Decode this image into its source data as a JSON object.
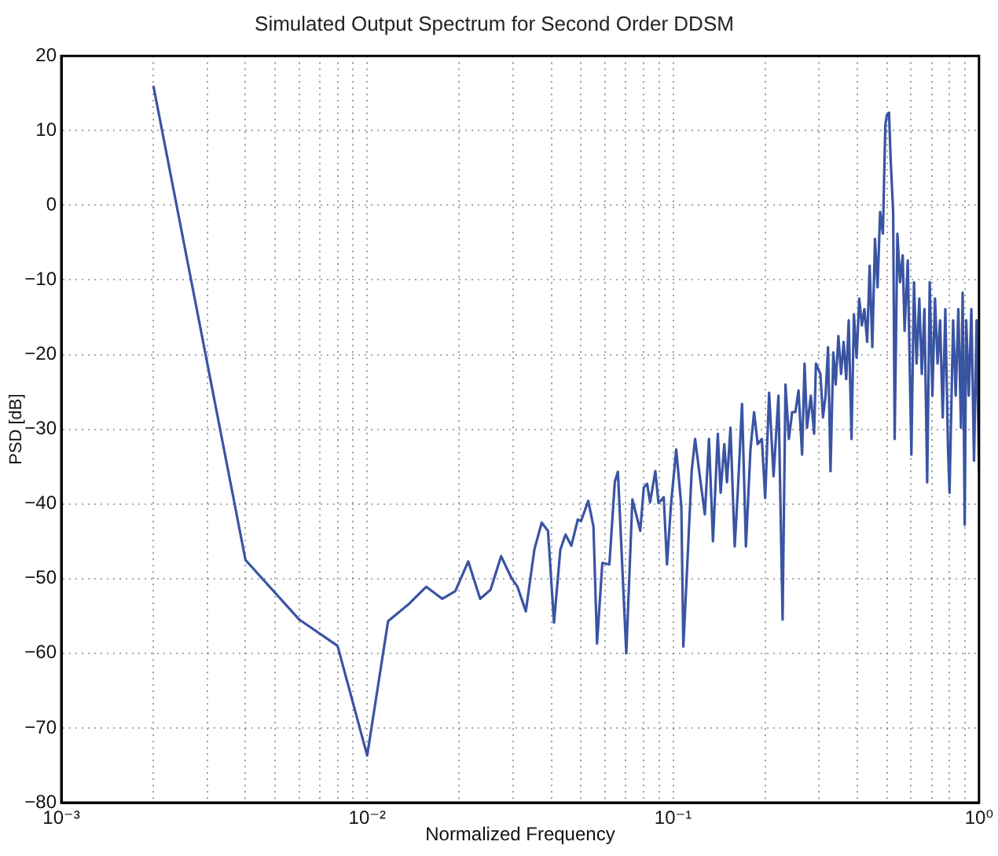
{
  "chart_data": {
    "type": "line",
    "title": "Simulated Output Spectrum for Second Order DDSM",
    "xlabel": "Normalized Frequency",
    "ylabel": "PSD [dB]",
    "log": "x",
    "grid": true,
    "legend": false,
    "marker": "none",
    "line_style": "solid",
    "xlim": [
      0.001,
      1
    ],
    "ylim": [
      -80,
      20
    ],
    "xticks": [
      {
        "value": 0.001,
        "label": "10⁻³"
      },
      {
        "value": 0.002,
        "label": null
      },
      {
        "value": 0.003,
        "label": null
      },
      {
        "value": 0.004,
        "label": null
      },
      {
        "value": 0.005,
        "label": null
      },
      {
        "value": 0.006,
        "label": null
      },
      {
        "value": 0.007,
        "label": null
      },
      {
        "value": 0.008,
        "label": null
      },
      {
        "value": 0.009,
        "label": null
      },
      {
        "value": 0.01,
        "label": "10⁻²"
      },
      {
        "value": 0.02,
        "label": null
      },
      {
        "value": 0.03,
        "label": null
      },
      {
        "value": 0.04,
        "label": null
      },
      {
        "value": 0.05,
        "label": null
      },
      {
        "value": 0.06,
        "label": null
      },
      {
        "value": 0.07,
        "label": null
      },
      {
        "value": 0.08,
        "label": null
      },
      {
        "value": 0.09,
        "label": null
      },
      {
        "value": 0.1,
        "label": "10⁻¹"
      },
      {
        "value": 0.2,
        "label": null
      },
      {
        "value": 0.3,
        "label": null
      },
      {
        "value": 0.4,
        "label": null
      },
      {
        "value": 0.5,
        "label": null
      },
      {
        "value": 0.6,
        "label": null
      },
      {
        "value": 0.7,
        "label": null
      },
      {
        "value": 0.8,
        "label": null
      },
      {
        "value": 0.9,
        "label": null
      },
      {
        "value": 1,
        "label": "10⁰"
      }
    ],
    "yticks": [
      -80,
      -70,
      -60,
      -50,
      -40,
      -30,
      -20,
      -10,
      0,
      10,
      20
    ],
    "series": [
      {
        "color": "#3a54a4",
        "x": [
          0.002,
          0.004,
          0.006,
          0.008,
          0.01,
          0.0117,
          0.0136,
          0.0156,
          0.0176,
          0.0194,
          0.0214,
          0.0234,
          0.0253,
          0.0274,
          0.0296,
          0.031,
          0.033,
          0.0352,
          0.0372,
          0.039,
          0.0408,
          0.0428,
          0.0445,
          0.0465,
          0.0488,
          0.05,
          0.0528,
          0.0549,
          0.0564,
          0.0587,
          0.0619,
          0.0645,
          0.066,
          0.0703,
          0.0736,
          0.0781,
          0.0802,
          0.0822,
          0.0841,
          0.0875,
          0.0896,
          0.0932,
          0.0955,
          0.0985,
          0.1024,
          0.1064,
          0.108,
          0.111,
          0.115,
          0.118,
          0.123,
          0.127,
          0.131,
          0.135,
          0.14,
          0.143,
          0.147,
          0.15,
          0.154,
          0.159,
          0.163,
          0.168,
          0.173,
          0.179,
          0.184,
          0.189,
          0.195,
          0.2,
          0.206,
          0.213,
          0.221,
          0.228,
          0.233,
          0.239,
          0.245,
          0.251,
          0.257,
          0.264,
          0.269,
          0.274,
          0.282,
          0.289,
          0.293,
          0.303,
          0.309,
          0.315,
          0.321,
          0.327,
          0.334,
          0.34,
          0.347,
          0.354,
          0.361,
          0.368,
          0.375,
          0.383,
          0.39,
          0.398,
          0.406,
          0.414,
          0.422,
          0.431,
          0.439,
          0.448,
          0.457,
          0.466,
          0.475,
          0.485,
          0.494,
          0.5,
          0.508,
          0.514,
          0.524,
          0.53,
          0.541,
          0.552,
          0.563,
          0.571,
          0.585,
          0.601,
          0.613,
          0.625,
          0.638,
          0.65,
          0.663,
          0.677,
          0.69,
          0.704,
          0.718,
          0.732,
          0.746,
          0.761,
          0.776,
          0.792,
          0.801,
          0.823,
          0.839,
          0.856,
          0.873,
          0.884,
          0.898,
          0.908,
          0.926,
          0.944,
          0.963,
          0.982,
          1
        ],
        "values": [
          16,
          -47.5,
          -55.5,
          -59,
          -73.7,
          -55.7,
          -53.5,
          -51.1,
          -52.7,
          -51.7,
          -47.7,
          -52.7,
          -51.5,
          -47,
          -49.9,
          -51.1,
          -54.4,
          -46.1,
          -42.5,
          -43.6,
          -55.9,
          -46.1,
          -44.1,
          -45.6,
          -42.1,
          -42.3,
          -39.6,
          -43,
          -58.7,
          -47.9,
          -48.1,
          -37,
          -35.7,
          -60,
          -39.4,
          -43.6,
          -37.8,
          -37.3,
          -39.8,
          -35.6,
          -39.9,
          -39.1,
          -48.1,
          -39.9,
          -32.7,
          -40.3,
          -59.1,
          -49,
          -35.6,
          -31.3,
          -37.1,
          -41.4,
          -31.3,
          -45,
          -30.6,
          -38.5,
          -32,
          -37.1,
          -29.8,
          -45.7,
          -37.8,
          -26.6,
          -45.7,
          -32.7,
          -27.7,
          -32,
          -31.3,
          -39.2,
          -25.1,
          -36.3,
          -25.5,
          -55.5,
          -24,
          -31.3,
          -27.7,
          -27.7,
          -24.8,
          -33.4,
          -21.2,
          -29.8,
          -25.5,
          -30.6,
          -21.2,
          -22.6,
          -28.4,
          -25.5,
          -19,
          -35.6,
          -19.7,
          -24,
          -17.5,
          -22.6,
          -18.3,
          -23.3,
          -15.4,
          -31.3,
          -14.6,
          -20.4,
          -12.5,
          -16.1,
          -13.9,
          -18.3,
          -8.1,
          -19,
          -4.5,
          -11,
          -0.9,
          -3.8,
          10.7,
          12.1,
          12.4,
          6.3,
          -0.9,
          -31.3,
          -3.8,
          -10.3,
          -6.7,
          -16.8,
          -7.4,
          -33.4,
          -10.3,
          -21.2,
          -12.5,
          -22.6,
          -13.9,
          -37.1,
          -10.3,
          -25.5,
          -12.5,
          -21.2,
          -15.4,
          -28.4,
          -13.9,
          -32.7,
          -38.5,
          -15.4,
          -25.5,
          -13.9,
          -29.8,
          -11.7,
          -42.8,
          -15.4,
          -25.5,
          -13.9,
          -34.2,
          -15.4,
          -35.6
        ]
      }
    ]
  }
}
